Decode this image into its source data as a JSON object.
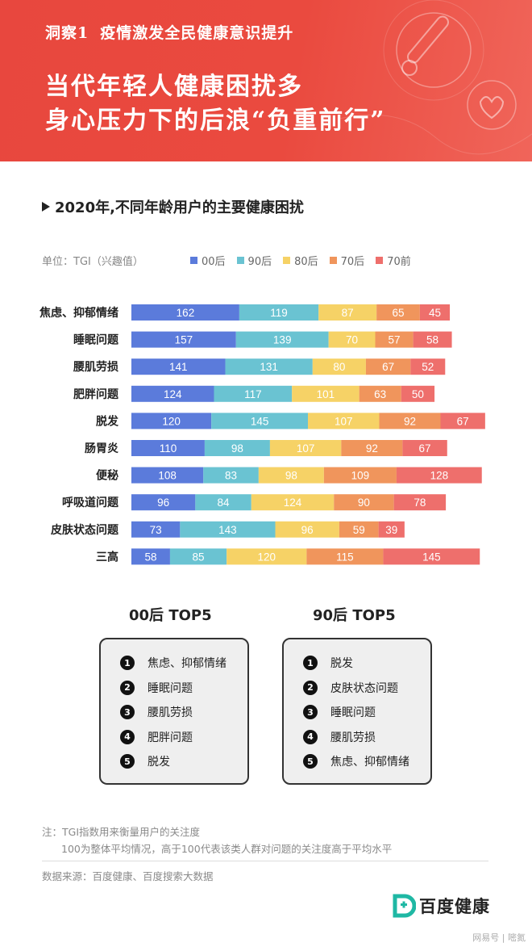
{
  "header": {
    "insight_tag": "洞察1",
    "insight_title": "疫情激发全民健康意识提升",
    "line1": "当代年轻人健康困扰多",
    "line2": "身心压力下的后浪“负重前行”"
  },
  "chart_title": "2020年,不同年龄用户的主要健康困扰",
  "unit_label": "单位：TGI（兴趣值）",
  "chart_data": {
    "type": "bar",
    "stacked": true,
    "orientation": "horizontal",
    "title": "2020年,不同年龄用户的主要健康困扰",
    "unit": "单位：TGI（兴趣值）",
    "categories": [
      "焦虑、抑郁情绪",
      "睡眠问题",
      "腰肌劳损",
      "肥胖问题",
      "脱发",
      "肠胃炎",
      "便秘",
      "呼吸道问题",
      "皮肤状态问题",
      "三高"
    ],
    "series": [
      {
        "name": "00后",
        "color": "#5b7bdb",
        "values": [
          162,
          157,
          141,
          124,
          120,
          110,
          108,
          96,
          73,
          58
        ]
      },
      {
        "name": "90后",
        "color": "#6ac3d2",
        "values": [
          119,
          139,
          131,
          117,
          145,
          98,
          83,
          84,
          143,
          85
        ]
      },
      {
        "name": "80后",
        "color": "#f6d266",
        "values": [
          87,
          70,
          80,
          101,
          107,
          107,
          98,
          124,
          96,
          120
        ]
      },
      {
        "name": "70后",
        "color": "#f0955c",
        "values": [
          65,
          57,
          67,
          63,
          92,
          92,
          109,
          90,
          59,
          115
        ]
      },
      {
        "name": "70前",
        "color": "#ee6f6c",
        "values": [
          45,
          58,
          52,
          50,
          67,
          67,
          128,
          78,
          39,
          145
        ]
      }
    ],
    "legend_position": "top",
    "grid": false
  },
  "top5": [
    {
      "title": "00后  TOP5",
      "items": [
        "焦虑、抑郁情绪",
        "睡眠问题",
        "腰肌劳损",
        "肥胖问题",
        "脱发"
      ]
    },
    {
      "title": "90后  TOP5",
      "items": [
        "脱发",
        "皮肤状态问题",
        "睡眠问题",
        "腰肌劳损",
        "焦虑、抑郁情绪"
      ]
    }
  ],
  "note_line1": "注：TGI指数用来衡量用户的关注度",
  "note_line2": "100为整体平均情况，高于100代表该类人群对问题的关注度高于平均水平",
  "source": "数据来源：百度健康、百度搜索大数据",
  "brand_name": "百度健康",
  "watermark": "网易号 | 嘧氮"
}
